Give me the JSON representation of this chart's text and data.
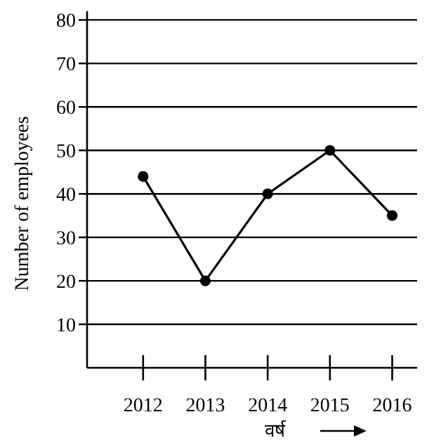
{
  "chart_data": {
    "type": "line",
    "xlabel": "वर्ष",
    "ylabel": "Number of employees",
    "categories": [
      "2012",
      "2013",
      "2014",
      "2015",
      "2016"
    ],
    "series": [
      {
        "color": "#000000",
        "values": [
          44,
          20,
          40,
          50,
          35
        ]
      }
    ],
    "ylim": [
      0,
      82
    ],
    "yticks": [
      10,
      20,
      30,
      40,
      50,
      60,
      70,
      80
    ],
    "grid": "y",
    "marker": "circle",
    "line_style": "solid"
  }
}
